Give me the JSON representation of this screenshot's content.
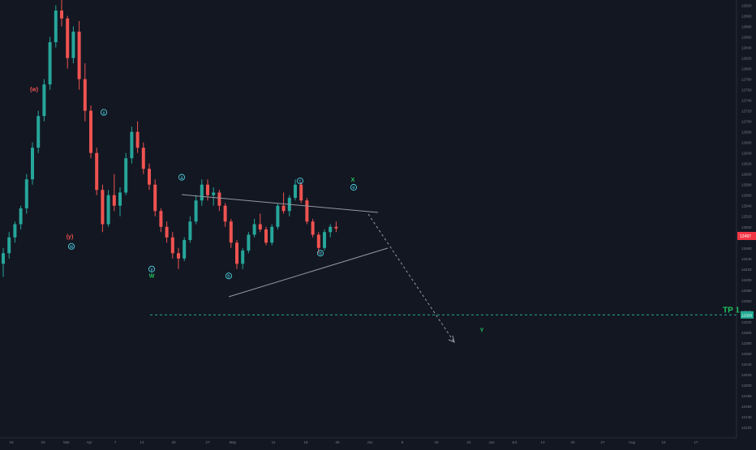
{
  "chart_data": {
    "type": "candlestick",
    "title": "",
    "y_axis": {
      "side": "right",
      "range": [
        12100,
        12930
      ],
      "tick_labels": [
        "12920",
        "12900",
        "12880",
        "12860",
        "12840",
        "12820",
        "12800",
        "12780",
        "12760",
        "12740",
        "12720",
        "12700",
        "12680",
        "12660",
        "12640",
        "12620",
        "12600",
        "12580",
        "12560",
        "12540",
        "12520",
        "12500",
        "12480",
        "12460",
        "12440",
        "12420",
        "12400",
        "12380",
        "12360",
        "12340",
        "12320",
        "12300",
        "12280",
        "12260",
        "12240",
        "12220",
        "12200",
        "12180",
        "12160",
        "12140",
        "12120"
      ]
    },
    "x_axis": {
      "tick_labels": [
        "16",
        "23",
        "Mar",
        "Apr",
        "7",
        "13",
        "20",
        "27",
        "May",
        "11",
        "18",
        "25",
        "Jun",
        "8",
        "15",
        "22",
        "Jun",
        "Jul",
        "13",
        "20",
        "27",
        "Aug",
        "10",
        "17"
      ]
    },
    "price_badge": {
      "label": "12497",
      "color": "#f23645"
    },
    "target_line": {
      "price": 12333,
      "badge": "12333",
      "label": "TP 1",
      "color": "#22ab94"
    },
    "colors": {
      "background": "#131722",
      "up": "#26a69a",
      "down": "#ef5350",
      "wave": "#4dd0e1",
      "green": "#22c55e",
      "neutral": "#9598a1"
    },
    "wave_labels": [
      {
        "text": "(w)",
        "price": 12762,
        "color": "#ef5350"
      },
      {
        "text": "x",
        "price": 12717,
        "color": "#4dd0e1",
        "circled": true
      },
      {
        "text": "(y)",
        "price": 12483,
        "color": "#ef5350"
      },
      {
        "text": "w",
        "price": 12463,
        "color": "#4dd0e1",
        "circled": true
      },
      {
        "text": "y",
        "price": 12420,
        "color": "#4dd0e1",
        "circled": true
      },
      {
        "text": "W",
        "price": 12408,
        "color": "#22c55e"
      },
      {
        "text": "a",
        "price": 12594,
        "color": "#4dd0e1",
        "circled": true
      },
      {
        "text": "b",
        "price": 12407,
        "color": "#4dd0e1",
        "circled": true
      },
      {
        "text": "c",
        "price": 12587,
        "color": "#4dd0e1",
        "circled": true
      },
      {
        "text": "d",
        "price": 12450,
        "color": "#4dd0e1",
        "circled": true
      },
      {
        "text": "e",
        "price": 12575,
        "color": "#4dd0e1",
        "circled": true
      },
      {
        "text": "X",
        "price": 12590,
        "color": "#22c55e"
      },
      {
        "text": "Y",
        "price": 12305,
        "color": "#22c55e"
      }
    ],
    "candles": [
      [
        12430,
        12460,
        12405,
        12450
      ],
      [
        12450,
        12490,
        12440,
        12480
      ],
      [
        12480,
        12510,
        12470,
        12505
      ],
      [
        12505,
        12540,
        12495,
        12535
      ],
      [
        12535,
        12600,
        12525,
        12590
      ],
      [
        12590,
        12660,
        12580,
        12650
      ],
      [
        12650,
        12720,
        12640,
        12710
      ],
      [
        12710,
        12780,
        12700,
        12770
      ],
      [
        12770,
        12860,
        12760,
        12850
      ],
      [
        12850,
        12920,
        12840,
        12910
      ],
      [
        12910,
        12930,
        12880,
        12895
      ],
      [
        12895,
        12900,
        12800,
        12820
      ],
      [
        12820,
        12880,
        12810,
        12870
      ],
      [
        12870,
        12890,
        12760,
        12780
      ],
      [
        12780,
        12810,
        12700,
        12720
      ],
      [
        12720,
        12730,
        12630,
        12640
      ],
      [
        12640,
        12650,
        12560,
        12570
      ],
      [
        12570,
        12580,
        12490,
        12505
      ],
      [
        12505,
        12570,
        12500,
        12560
      ],
      [
        12560,
        12600,
        12530,
        12540
      ],
      [
        12540,
        12575,
        12520,
        12565
      ],
      [
        12565,
        12640,
        12560,
        12630
      ],
      [
        12630,
        12690,
        12620,
        12680
      ],
      [
        12680,
        12700,
        12640,
        12650
      ],
      [
        12650,
        12660,
        12600,
        12610
      ],
      [
        12610,
        12620,
        12570,
        12580
      ],
      [
        12580,
        12590,
        12520,
        12530
      ],
      [
        12530,
        12535,
        12490,
        12500
      ],
      [
        12500,
        12510,
        12470,
        12480
      ],
      [
        12480,
        12490,
        12440,
        12450
      ],
      [
        12450,
        12460,
        12420,
        12440
      ],
      [
        12440,
        12480,
        12435,
        12475
      ],
      [
        12475,
        12520,
        12470,
        12510
      ],
      [
        12510,
        12560,
        12505,
        12550
      ],
      [
        12550,
        12590,
        12540,
        12580
      ],
      [
        12580,
        12590,
        12550,
        12560
      ],
      [
        12560,
        12575,
        12540,
        12565
      ],
      [
        12565,
        12570,
        12530,
        12540
      ],
      [
        12540,
        12545,
        12500,
        12510
      ],
      [
        12510,
        12515,
        12460,
        12470
      ],
      [
        12470,
        12475,
        12420,
        12430
      ],
      [
        12430,
        12460,
        12420,
        12455
      ],
      [
        12455,
        12490,
        12450,
        12485
      ],
      [
        12485,
        12515,
        12480,
        12505
      ],
      [
        12505,
        12525,
        12490,
        12495
      ],
      [
        12495,
        12500,
        12465,
        12470
      ],
      [
        12470,
        12505,
        12465,
        12500
      ],
      [
        12500,
        12545,
        12495,
        12540
      ],
      [
        12540,
        12565,
        12525,
        12530
      ],
      [
        12530,
        12560,
        12520,
        12555
      ],
      [
        12555,
        12590,
        12550,
        12580
      ],
      [
        12580,
        12585,
        12545,
        12550
      ],
      [
        12550,
        12555,
        12505,
        12510
      ],
      [
        12510,
        12515,
        12480,
        12485
      ],
      [
        12485,
        12490,
        12450,
        12460
      ],
      [
        12460,
        12495,
        12455,
        12490
      ],
      [
        12490,
        12505,
        12480,
        12500
      ],
      [
        12500,
        12510,
        12490,
        12497
      ]
    ]
  }
}
